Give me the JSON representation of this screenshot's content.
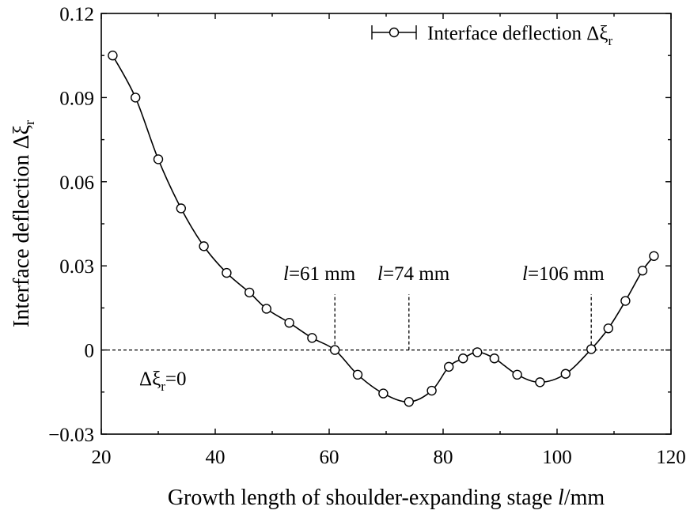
{
  "chart_data": {
    "type": "line",
    "xlabel": "Growth length of shoulder-expanding stage",
    "xlabel_var": "l",
    "xlabel_unit": "/mm",
    "ylabel": "Interface deflection Δξ",
    "ylabel_sub": "r",
    "xlim": [
      20,
      120
    ],
    "ylim": [
      -0.03,
      0.12
    ],
    "xticks": [
      20,
      40,
      60,
      80,
      100,
      120
    ],
    "xtick_labels": [
      "20",
      "40",
      "60",
      "80",
      "100",
      "120"
    ],
    "yticks": [
      -0.03,
      0,
      0.03,
      0.06,
      0.09,
      0.12
    ],
    "ytick_labels": [
      "−0.03",
      "0",
      "0.03",
      "0.06",
      "0.09",
      "0.12"
    ],
    "grid": false,
    "legend_position": "top-right",
    "series": [
      {
        "name": "Interface deflection Δξ",
        "name_sub": "r",
        "marker": "circle",
        "x": [
          22,
          26,
          30,
          34,
          38,
          42,
          46,
          49,
          53,
          57,
          61,
          65,
          69.5,
          74,
          78,
          81,
          83.5,
          86,
          89,
          93,
          97,
          101.5,
          106,
          109,
          112,
          115,
          117
        ],
        "y": [
          0.105,
          0.09,
          0.068,
          0.0505,
          0.037,
          0.0275,
          0.0205,
          0.0147,
          0.0097,
          0.0043,
          0.0,
          -0.0088,
          -0.0155,
          -0.0185,
          -0.0145,
          -0.006,
          -0.003,
          -0.0008,
          -0.003,
          -0.0088,
          -0.0115,
          -0.0085,
          0.0003,
          0.0077,
          0.0175,
          0.0283,
          0.0335
        ]
      }
    ],
    "reference_lines": [
      {
        "orientation": "horizontal",
        "y": 0
      },
      {
        "orientation": "vertical",
        "x": 61
      },
      {
        "orientation": "vertical",
        "x": 74
      },
      {
        "orientation": "vertical",
        "x": 106
      }
    ],
    "annotations": [
      {
        "var": "l",
        "text": "=61 mm",
        "x": 61
      },
      {
        "var": "l",
        "text": "=74 mm",
        "x": 74
      },
      {
        "var": "l",
        "text": "=106 mm",
        "x": 106
      }
    ],
    "zero_label": {
      "main": "Δξ",
      "sub": "r",
      "rest": "=0"
    }
  }
}
